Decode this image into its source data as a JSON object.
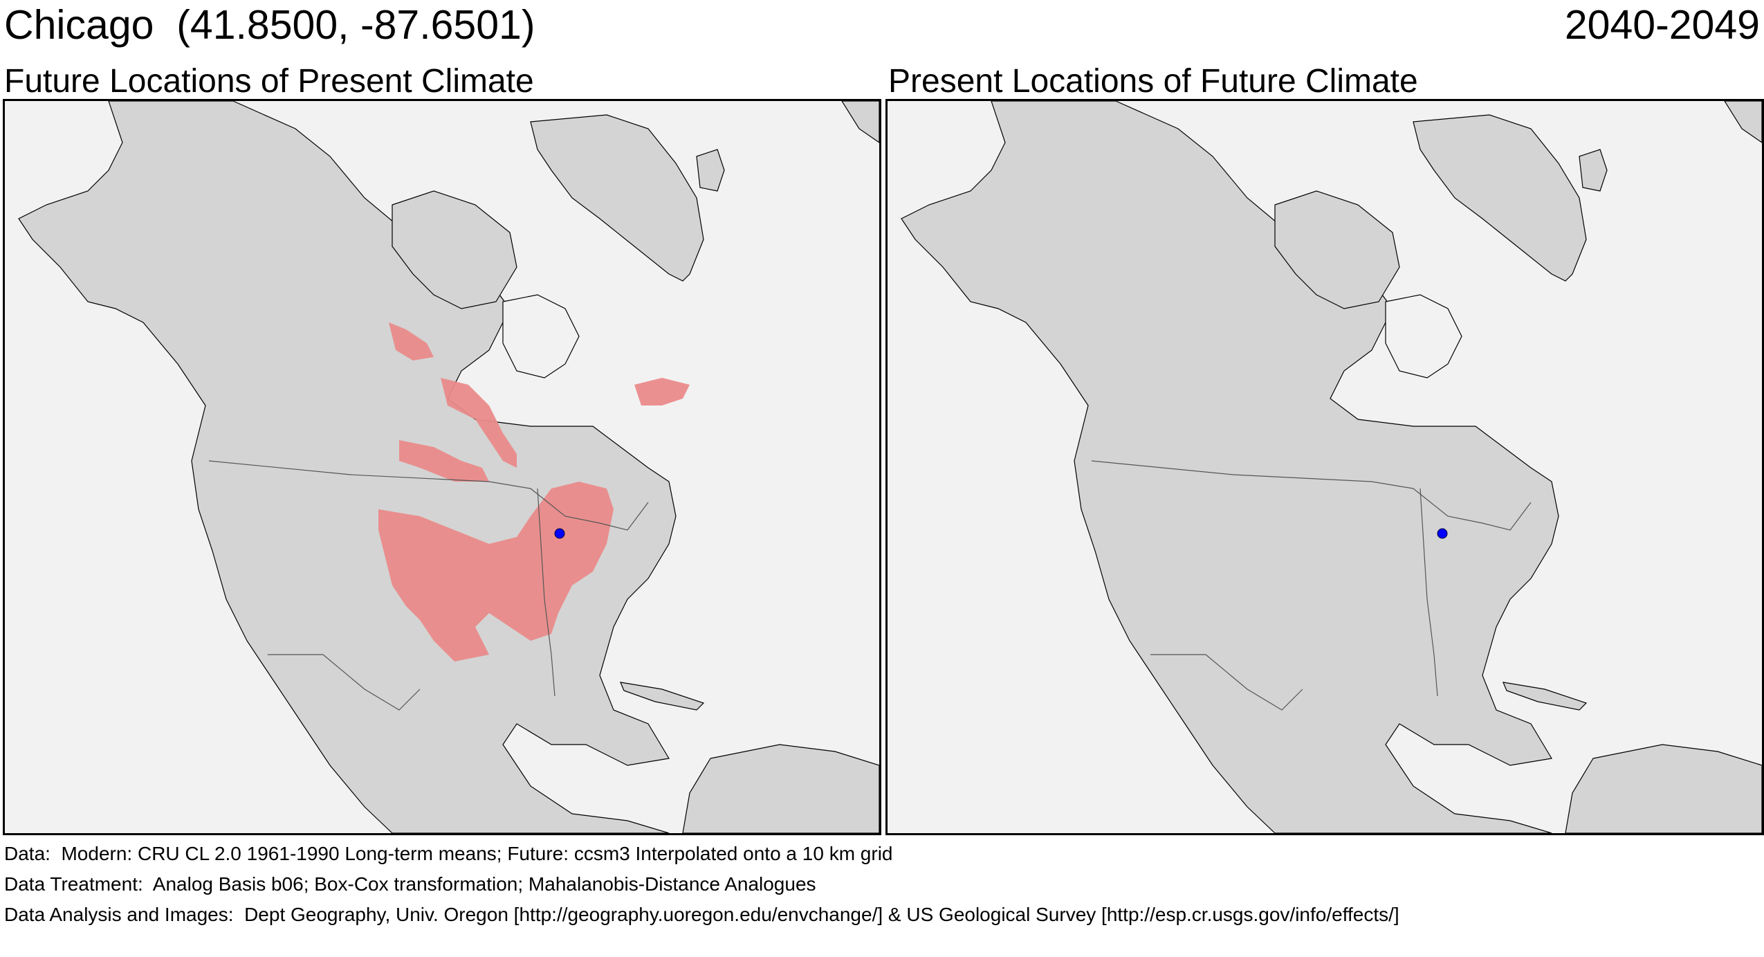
{
  "header": {
    "location": "Chicago  (41.8500, -87.6501)",
    "period": "2040-2049"
  },
  "panels": [
    {
      "title": "Future Locations of Present Climate",
      "analog_area": true
    },
    {
      "title": "Present Locations of Future Climate",
      "analog_area": false
    }
  ],
  "marker": {
    "name": "Chicago",
    "lat": 41.85,
    "lon": -87.6501,
    "color": "#0000ff"
  },
  "colors": {
    "land": "#d4d4d4",
    "ocean": "#f2f2f2",
    "analog": "#ea8a8a",
    "border": "#000000"
  },
  "footer": {
    "data": "Data:  Modern: CRU CL 2.0 1961-1990 Long-term means; Future: ccsm3 Interpolated onto a 10 km grid",
    "treatment": "Data Treatment:  Analog Basis b06; Box-Cox transformation; Mahalanobis-Distance Analogues",
    "analysis": "Data Analysis and Images:  Dept Geography, Univ. Oregon [http://geography.uoregon.edu/envchange/] & US Geological Survey [http://esp.cr.usgs.gov/info/effects/]"
  }
}
